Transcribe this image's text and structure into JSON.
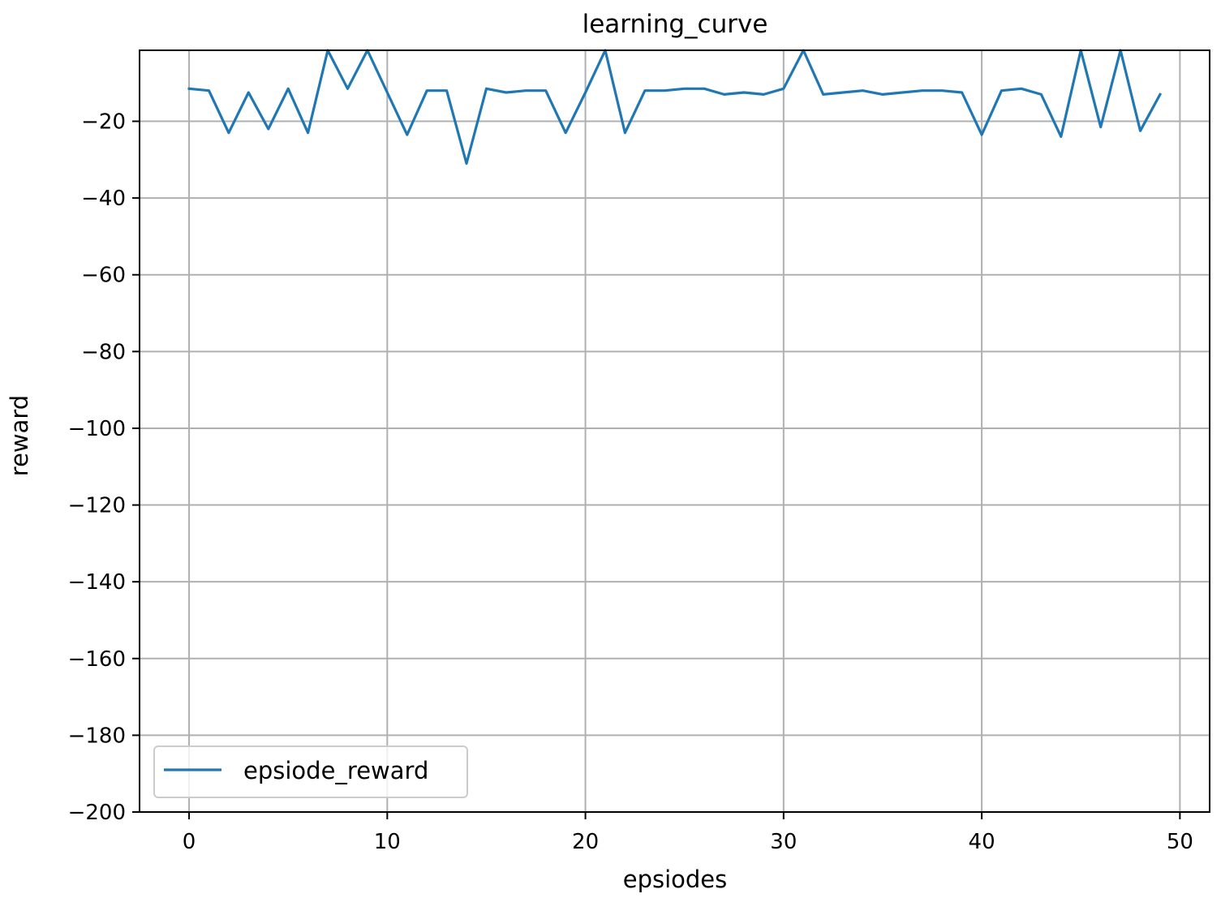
{
  "chart_data": {
    "type": "line",
    "title": "learning_curve",
    "xlabel": "epsiodes",
    "ylabel": "reward",
    "xlim": [
      -2.5,
      51.5
    ],
    "ylim": [
      -200,
      -1.5
    ],
    "xticks": [
      0,
      10,
      20,
      30,
      40,
      50
    ],
    "yticks": [
      -20,
      -40,
      -60,
      -80,
      -100,
      -120,
      -140,
      -160,
      -180,
      -200
    ],
    "grid": true,
    "legend_position": "lower left",
    "series": [
      {
        "name": "epsiode_reward",
        "color": "#1f77b4",
        "x": [
          0,
          1,
          2,
          3,
          4,
          5,
          6,
          7,
          8,
          9,
          10,
          11,
          12,
          13,
          14,
          15,
          16,
          17,
          18,
          19,
          20,
          21,
          22,
          23,
          24,
          25,
          26,
          27,
          28,
          29,
          30,
          31,
          32,
          33,
          34,
          35,
          36,
          37,
          38,
          39,
          40,
          41,
          42,
          43,
          44,
          45,
          46,
          47,
          48,
          49
        ],
        "y": [
          -11.5,
          -12,
          -23,
          -12.5,
          -22,
          -11.5,
          -23,
          -1.5,
          -11.5,
          -1.5,
          -12.5,
          -23.5,
          -12,
          -12,
          -31,
          -11.5,
          -12.5,
          -12,
          -12,
          -23,
          -12.5,
          -1.5,
          -23,
          -12,
          -12,
          -11.5,
          -11.5,
          -13,
          -12.5,
          -13,
          -11.5,
          -1.5,
          -13,
          -12.5,
          -12,
          -13,
          -12.5,
          -12,
          -12,
          -12.5,
          -23.5,
          -12,
          -11.5,
          -13,
          -24,
          -1.5,
          -21.5,
          -1.5,
          -22.5,
          -13
        ]
      }
    ]
  }
}
